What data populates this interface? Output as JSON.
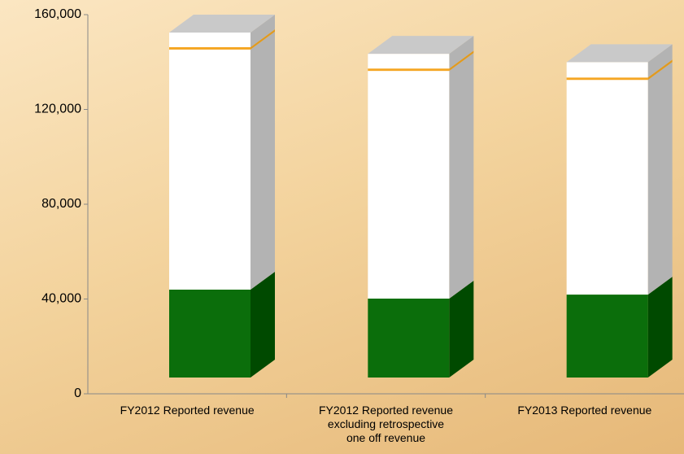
{
  "chart_data": {
    "type": "bar3d_stacked",
    "categories": [
      "FY2012 Reported revenue",
      "FY2012 Reported revenue\nexcluding retrospective\none off revenue",
      "FY2013 Reported revenue"
    ],
    "series": [
      {
        "color": "#0b6e0b",
        "side_color": "#004a00",
        "values": [
          37100,
          33300,
          35000
        ]
      },
      {
        "color": "#ffffff",
        "side_color": "#b3b3b3",
        "values": [
          101300,
          96100,
          90600
        ]
      },
      {
        "color": "#f5a623",
        "side_color": "#e09a20",
        "values": [
          1000,
          1000,
          1000
        ]
      },
      {
        "color": "#ffffff",
        "side_color": "#b3b3b3",
        "values": [
          6200,
          6200,
          6500
        ]
      }
    ],
    "ylim": [
      0,
      160000
    ],
    "yticks": [
      0,
      {
        "value": 40000,
        "label": "40,000"
      },
      {
        "value": 80000,
        "label": "80,000"
      },
      {
        "value": 120000,
        "label": "120,000"
      },
      {
        "value": 160000,
        "label": "160,000"
      }
    ]
  }
}
